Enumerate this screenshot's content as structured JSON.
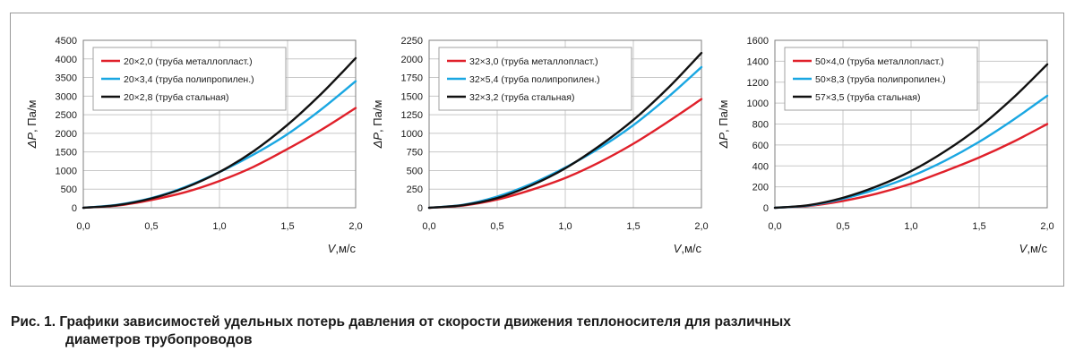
{
  "colors": {
    "red": "#e0202a",
    "blue": "#1aa7e2",
    "black": "#111111",
    "grid": "#c8c8c8",
    "axis": "#7f7f7f"
  },
  "caption": {
    "line1": "Рис. 1. Графики зависимостей удельных потерь давления от скорости движения теплоносителя для различных",
    "line2": "диаметров трубопроводов"
  },
  "chart_data": [
    {
      "type": "line",
      "ylabel_symbol": "ΔP",
      "ylabel_unit": ", Па/м",
      "xlabel_symbol": "V",
      "xlabel_unit": ",м/с",
      "xlim": [
        0,
        2
      ],
      "ylim": [
        0,
        4500
      ],
      "x_ticks": [
        "0,0",
        "0,5",
        "1,0",
        "1,5",
        "2,0"
      ],
      "y_ticks": [
        "0",
        "500",
        "1000",
        "1500",
        "2000",
        "2500",
        "3000",
        "3500",
        "4000",
        "4500"
      ],
      "grid": true,
      "legend_position": "top-left",
      "series": [
        {
          "name": "20×2,0 (труба металлопласт.)",
          "color": "#e0202a",
          "x": [
            0,
            0.25,
            0.5,
            0.75,
            1.0,
            1.25,
            1.5,
            1.75,
            2.0
          ],
          "y": [
            0,
            60,
            210,
            420,
            720,
            1100,
            1580,
            2100,
            2680
          ]
        },
        {
          "name": "20×3,4 (труба полипропилен.)",
          "color": "#1aa7e2",
          "x": [
            0,
            0.25,
            0.5,
            0.75,
            1.0,
            1.25,
            1.5,
            1.75,
            2.0
          ],
          "y": [
            0,
            80,
            260,
            560,
            960,
            1430,
            1980,
            2650,
            3400
          ]
        },
        {
          "name": "20×2,8 (труба стальная)",
          "color": "#111111",
          "x": [
            0,
            0.25,
            0.5,
            0.75,
            1.0,
            1.25,
            1.5,
            1.75,
            2.0
          ],
          "y": [
            0,
            70,
            250,
            540,
            960,
            1520,
            2230,
            3070,
            4020
          ]
        }
      ]
    },
    {
      "type": "line",
      "ylabel_symbol": "ΔP",
      "ylabel_unit": ", Па/м",
      "xlabel_symbol": "V",
      "xlabel_unit": ",м/с",
      "xlim": [
        0,
        2
      ],
      "ylim": [
        0,
        2250
      ],
      "x_ticks": [
        "0,0",
        "0,5",
        "1,0",
        "1,5",
        "2,0"
      ],
      "y_ticks": [
        "0",
        "250",
        "500",
        "750",
        "1000",
        "1250",
        "1500",
        "1750",
        "2000",
        "2250"
      ],
      "grid": true,
      "legend_position": "top-left",
      "series": [
        {
          "name": "32×3,0 (труба металлопласт.)",
          "color": "#e0202a",
          "x": [
            0,
            0.25,
            0.5,
            0.75,
            1.0,
            1.25,
            1.5,
            1.75,
            2.0
          ],
          "y": [
            0,
            30,
            110,
            240,
            400,
            610,
            860,
            1150,
            1460
          ]
        },
        {
          "name": "32×5,4 (труба полипропилен.)",
          "color": "#1aa7e2",
          "x": [
            0,
            0.25,
            0.5,
            0.75,
            1.0,
            1.25,
            1.5,
            1.75,
            2.0
          ],
          "y": [
            0,
            40,
            150,
            320,
            540,
            800,
            1110,
            1480,
            1890
          ]
        },
        {
          "name": "32×3,2 (труба стальная)",
          "color": "#111111",
          "x": [
            0,
            0.25,
            0.5,
            0.75,
            1.0,
            1.25,
            1.5,
            1.75,
            2.0
          ],
          "y": [
            0,
            35,
            130,
            300,
            530,
            830,
            1180,
            1600,
            2080
          ]
        }
      ]
    },
    {
      "type": "line",
      "ylabel_symbol": "ΔP",
      "ylabel_unit": ", Па/м",
      "xlabel_symbol": "V",
      "xlabel_unit": ",м/с",
      "xlim": [
        0,
        2
      ],
      "ylim": [
        0,
        1600
      ],
      "x_ticks": [
        "0,0",
        "0,5",
        "1,0",
        "1,5",
        "2,0"
      ],
      "y_ticks": [
        "0",
        "200",
        "400",
        "600",
        "800",
        "1000",
        "1200",
        "1400",
        "1600"
      ],
      "grid": true,
      "legend_position": "top-left",
      "series": [
        {
          "name": "50×4,0 (труба металлопласт.)",
          "color": "#e0202a",
          "x": [
            0,
            0.25,
            0.5,
            0.75,
            1.0,
            1.25,
            1.5,
            1.75,
            2.0
          ],
          "y": [
            0,
            18,
            65,
            135,
            230,
            350,
            480,
            630,
            800
          ]
        },
        {
          "name": "50×8,3 (труба полипропилен.)",
          "color": "#1aa7e2",
          "x": [
            0,
            0.25,
            0.5,
            0.75,
            1.0,
            1.25,
            1.5,
            1.75,
            2.0
          ],
          "y": [
            0,
            22,
            85,
            180,
            300,
            450,
            630,
            840,
            1070
          ]
        },
        {
          "name": "57×3,5 (труба стальная)",
          "color": "#111111",
          "x": [
            0,
            0.25,
            0.5,
            0.75,
            1.0,
            1.25,
            1.5,
            1.75,
            2.0
          ],
          "y": [
            0,
            25,
            95,
            205,
            350,
            540,
            770,
            1050,
            1370
          ]
        }
      ]
    }
  ]
}
